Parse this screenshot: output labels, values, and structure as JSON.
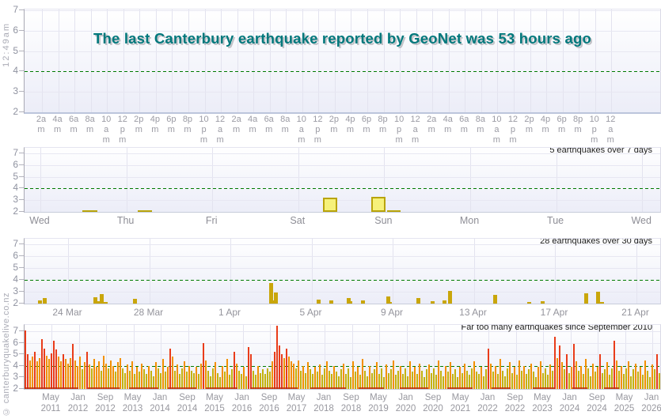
{
  "page": {
    "clock_label": "12:49am",
    "watermark": "© canterburyquakelive.co.nz",
    "colors": {
      "title_teal": "#00787c",
      "threshold_green": "#007a00",
      "bar_yellow_fill": "#f6f17a",
      "bar_yellow_border": "#b9a40b",
      "bar_gold": "#c9a60b",
      "bar_olive": "#c4b20a",
      "bar_orange": "#f39000",
      "bar_red": "#e93c1a",
      "baseline_red": "#be2a0a",
      "axis_baseline_p1": "#bcc5dc",
      "axis_baseline": "#c7cdda"
    }
  },
  "chart_data": [
    {
      "type": "bar",
      "title": "The last Canterbury earthquake reported by GeoNet was 53 hours ago",
      "annotation": "",
      "ylim": [
        2,
        7
      ],
      "y_ticks": [
        7,
        6,
        5,
        4,
        3,
        2
      ],
      "threshold": 4,
      "x_ticks": [
        "2am",
        "4am",
        "6am",
        "8am",
        "10am",
        "12pm",
        "2pm",
        "4pm",
        "6pm",
        "8pm",
        "10pm",
        "12am",
        "2am",
        "4am",
        "6am",
        "8am",
        "10am",
        "12pm",
        "2pm",
        "4pm",
        "6pm",
        "8pm",
        "10pm",
        "12am",
        "2am",
        "4am",
        "6am",
        "8am",
        "10am",
        "12pm",
        "2pm",
        "4pm",
        "6pm",
        "8pm",
        "10pm",
        "12am"
      ],
      "bars": []
    },
    {
      "type": "bar",
      "title": "",
      "annotation": "5 earthquakes over 7 days",
      "ylim": [
        2,
        7
      ],
      "y_ticks": [
        7,
        6,
        5,
        4,
        3,
        2
      ],
      "threshold": 4,
      "x_ticks": [
        "Wed",
        "Thu",
        "Fri",
        "Sat",
        "Sun",
        "Mon",
        "Tue",
        "Wed"
      ],
      "bars": [
        {
          "x": 0.091,
          "w": 0.023,
          "h": 2.15,
          "style": "flat"
        },
        {
          "x": 0.178,
          "w": 0.023,
          "h": 2.15,
          "style": "flat"
        },
        {
          "x": 0.47,
          "w": 0.022,
          "h": 3.2,
          "style": "outlined"
        },
        {
          "x": 0.545,
          "w": 0.023,
          "h": 3.3,
          "style": "outlined"
        },
        {
          "x": 0.57,
          "w": 0.021,
          "h": 2.07,
          "style": "flat"
        }
      ]
    },
    {
      "type": "bar",
      "title": "",
      "annotation": "28 earthquakes over 30 days",
      "ylim": [
        2,
        7
      ],
      "y_ticks": [
        7,
        6,
        5,
        4,
        3,
        2
      ],
      "threshold": 4,
      "x_ticks": [
        "24 Mar",
        "28 Mar",
        "1 Apr",
        "5 Apr",
        "9 Apr",
        "13 Apr",
        "17 Apr",
        "21 Apr"
      ],
      "bars": [
        {
          "x": 0.021,
          "h": 2.25
        },
        {
          "x": 0.029,
          "h": 2.5
        },
        {
          "x": 0.108,
          "h": 2.55
        },
        {
          "x": 0.112,
          "h": 2.2
        },
        {
          "x": 0.118,
          "h": 2.8
        },
        {
          "x": 0.125,
          "h": 2.1
        },
        {
          "x": 0.171,
          "h": 2.4
        },
        {
          "x": 0.385,
          "h": 3.75
        },
        {
          "x": 0.39,
          "h": 2.3
        },
        {
          "x": 0.392,
          "h": 2.95
        },
        {
          "x": 0.46,
          "h": 2.35
        },
        {
          "x": 0.479,
          "h": 2.25
        },
        {
          "x": 0.507,
          "h": 2.45
        },
        {
          "x": 0.51,
          "h": 2.2
        },
        {
          "x": 0.529,
          "h": 2.3
        },
        {
          "x": 0.569,
          "h": 2.6
        },
        {
          "x": 0.572,
          "h": 2.15
        },
        {
          "x": 0.616,
          "h": 2.5
        },
        {
          "x": 0.639,
          "h": 2.2
        },
        {
          "x": 0.657,
          "h": 2.25
        },
        {
          "x": 0.666,
          "h": 3.05
        },
        {
          "x": 0.737,
          "h": 2.75
        },
        {
          "x": 0.791,
          "h": 2.15
        },
        {
          "x": 0.812,
          "h": 2.2
        },
        {
          "x": 0.88,
          "h": 2.9
        },
        {
          "x": 0.899,
          "h": 3.0
        },
        {
          "x": 0.902,
          "h": 2.1
        },
        {
          "x": 0.906,
          "h": 2.05
        }
      ]
    },
    {
      "type": "bar",
      "title": "",
      "annotation": "Far too many earthquakes since  September 2010",
      "ylim": [
        2,
        7
      ],
      "y_ticks": [
        7,
        6,
        5,
        4,
        3,
        2
      ],
      "threshold": 4,
      "x_ticks": [
        "May 2011",
        "Jan 2012",
        "Sep 2012",
        "May 2013",
        "Jan 2014",
        "Sep 2014",
        "May 2015",
        "Jan 2016",
        "Sep 2016",
        "May 2017",
        "Jan 2018",
        "Sep 2018",
        "May 2019",
        "Jan 2020",
        "Sep 2020",
        "May 2021",
        "Jan 2022",
        "Sep 2022",
        "May 2023",
        "Jan 2024",
        "Sep 2024",
        "May 2025",
        "Jan 2026"
      ],
      "color_rule": {
        "red_min": 5.0,
        "orange_min": 3.9
      },
      "values_x10": [
        71,
        50,
        45,
        48,
        52,
        44,
        47,
        63,
        55,
        49,
        46,
        51,
        62,
        54,
        48,
        44,
        50,
        46,
        42,
        47,
        59,
        45,
        40,
        48,
        37,
        43,
        52,
        41,
        38,
        46,
        39,
        44,
        36,
        49,
        42,
        38,
        45,
        40,
        35,
        43,
        47,
        38,
        34,
        41,
        36,
        44,
        33,
        39,
        35,
        42,
        37,
        33,
        40,
        36,
        31,
        43,
        38,
        34,
        46,
        35,
        39,
        55,
        48,
        36,
        41,
        33,
        38,
        44,
        35,
        40,
        36,
        34,
        39,
        33,
        42,
        60,
        45,
        36,
        31,
        38,
        43,
        34,
        30,
        40,
        35,
        46,
        32,
        37,
        52,
        42,
        36,
        33,
        39,
        31,
        56,
        50,
        36,
        32,
        40,
        34,
        37,
        33,
        38,
        35,
        44,
        52,
        75,
        58,
        50,
        47,
        55,
        48,
        44,
        42,
        38,
        45,
        36,
        40,
        34,
        43,
        37,
        33,
        39,
        35,
        41,
        32,
        38,
        44,
        36,
        33,
        40,
        35,
        31,
        37,
        42,
        33,
        38,
        30,
        44,
        35,
        39,
        32,
        46,
        36,
        31,
        40,
        34,
        37,
        43,
        33,
        38,
        30,
        41,
        34,
        37,
        45,
        32,
        36,
        40,
        33,
        38,
        31,
        44,
        35,
        39,
        33,
        42,
        36,
        30,
        37,
        41,
        34,
        38,
        32,
        45,
        36,
        31,
        40,
        35,
        43,
        33,
        37,
        30,
        39,
        34,
        42,
        36,
        32,
        38,
        44,
        35,
        33,
        39,
        31,
        37,
        55,
        42,
        35,
        40,
        33,
        46,
        36,
        31,
        38,
        43,
        34,
        39,
        32,
        45,
        36,
        40,
        33,
        37,
        42,
        35,
        30,
        39,
        44,
        34,
        38,
        32,
        41,
        36,
        65,
        47,
        58,
        43,
        37,
        50,
        34,
        39,
        59,
        44,
        36,
        40,
        33,
        46,
        38,
        31,
        42,
        35,
        39,
        50,
        34,
        37,
        43,
        32,
        38,
        62,
        45,
        36,
        40,
        33,
        38,
        44,
        31,
        37,
        42,
        35,
        39,
        32,
        45,
        36,
        30,
        41,
        37,
        50,
        34
      ],
      "baseline_segments": [
        [
          0.0,
          0.085
        ],
        [
          0.1,
          0.15
        ],
        [
          0.165,
          0.21
        ],
        [
          0.225,
          0.27
        ],
        [
          0.285,
          0.335
        ],
        [
          0.355,
          0.43
        ],
        [
          0.45,
          0.505
        ],
        [
          0.525,
          0.565
        ],
        [
          0.59,
          0.635
        ],
        [
          0.665,
          0.705
        ],
        [
          0.735,
          0.765
        ],
        [
          0.8,
          0.835
        ],
        [
          0.862,
          0.885
        ],
        [
          0.912,
          0.935
        ]
      ]
    }
  ]
}
